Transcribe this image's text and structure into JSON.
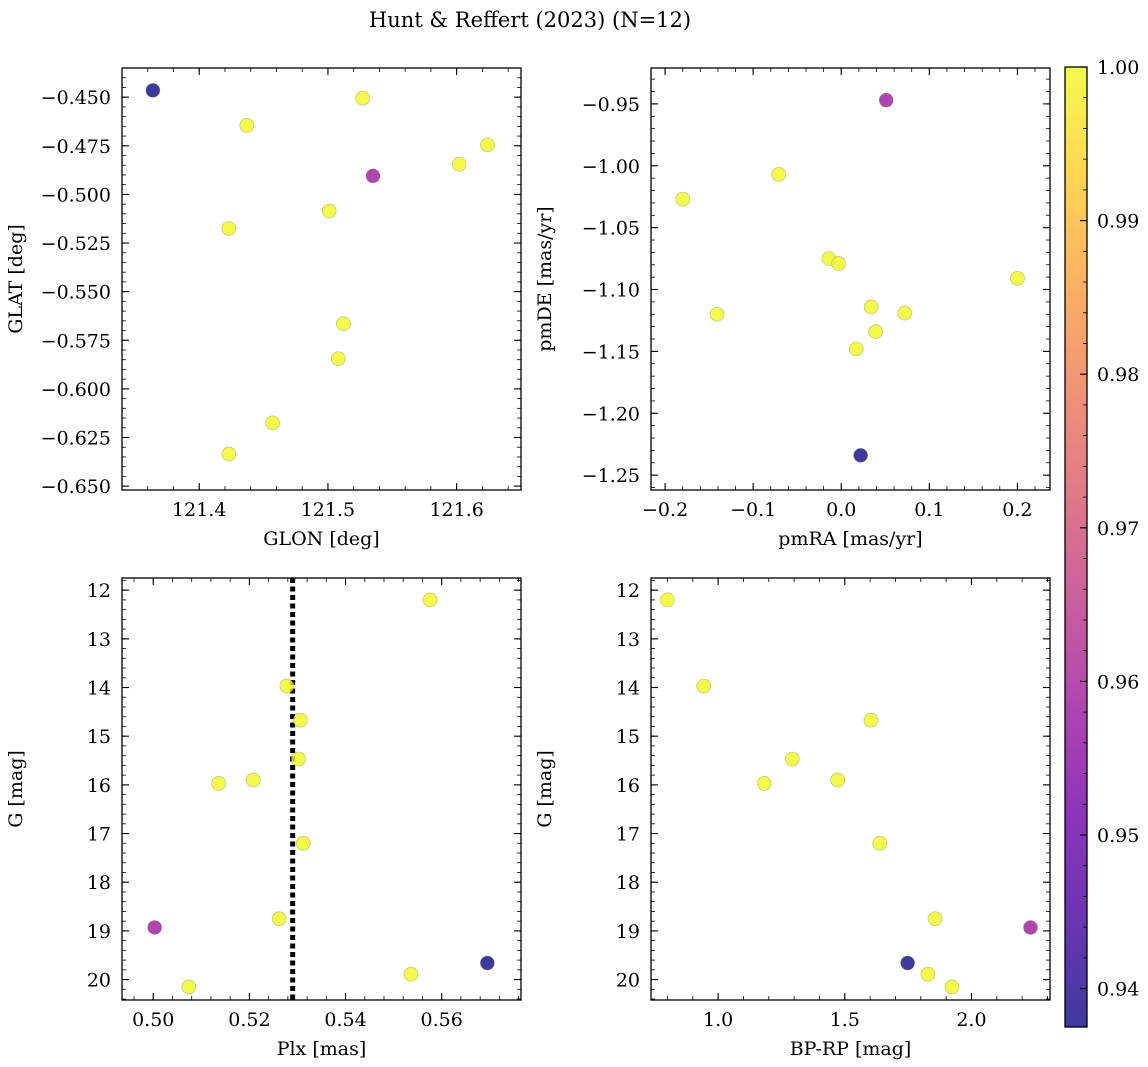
{
  "figure": {
    "title": "Hunt & Reffert (2023) (N=12)"
  },
  "colormap": {
    "name": "plasma",
    "stops": [
      "#0d0887",
      "#46039f",
      "#7201a8",
      "#9c179e",
      "#bd3786",
      "#d8576b",
      "#ed7953",
      "#fb9f3a",
      "#fdca26",
      "#f0f921"
    ],
    "alpha": 0.8,
    "vmin": 0.9375,
    "vmax": 1.0,
    "ticks": [
      0.94,
      0.95,
      0.96,
      0.97,
      0.98,
      0.99,
      1.0
    ],
    "tick_labels": [
      "0.94",
      "0.95",
      "0.96",
      "0.97",
      "0.98",
      "0.99",
      "1.00"
    ]
  },
  "chart_data": [
    {
      "type": "scatter",
      "xlabel": "GLON [deg]",
      "ylabel": "GLAT [deg]",
      "xlim": [
        121.34,
        121.65
      ],
      "ylim": [
        -0.652,
        -0.435
      ],
      "xticks": [
        121.4,
        121.5,
        121.6
      ],
      "xtick_labels": [
        "121.4",
        "121.5",
        "121.6"
      ],
      "yticks": [
        -0.45,
        -0.475,
        -0.5,
        -0.525,
        -0.55,
        -0.575,
        -0.6,
        -0.625,
        -0.65
      ],
      "ytick_labels": [
        "−0.450",
        "−0.475",
        "−0.500",
        "−0.525",
        "−0.550",
        "−0.575",
        "−0.600",
        "−0.625",
        "−0.650"
      ],
      "points": [
        {
          "x": 121.364,
          "y": -0.4465,
          "c": 0.9375
        },
        {
          "x": 121.527,
          "y": -0.4505,
          "c": 1.0
        },
        {
          "x": 121.437,
          "y": -0.4645,
          "c": 1.0
        },
        {
          "x": 121.624,
          "y": -0.4745,
          "c": 1.0
        },
        {
          "x": 121.602,
          "y": -0.4845,
          "c": 1.0
        },
        {
          "x": 121.535,
          "y": -0.4905,
          "c": 0.958
        },
        {
          "x": 121.501,
          "y": -0.5085,
          "c": 1.0
        },
        {
          "x": 121.423,
          "y": -0.5175,
          "c": 1.0
        },
        {
          "x": 121.512,
          "y": -0.5665,
          "c": 1.0
        },
        {
          "x": 121.508,
          "y": -0.5845,
          "c": 1.0
        },
        {
          "x": 121.457,
          "y": -0.6175,
          "c": 1.0
        },
        {
          "x": 121.423,
          "y": -0.6335,
          "c": 1.0
        }
      ]
    },
    {
      "type": "scatter",
      "xlabel": "pmRA [mas/yr]",
      "ylabel": "pmDE [mas/yr]",
      "xlim": [
        -0.216,
        0.237
      ],
      "ylim": [
        -1.262,
        -0.921
      ],
      "xticks": [
        -0.2,
        -0.1,
        0.0,
        0.1,
        0.2
      ],
      "xtick_labels": [
        "−0.2",
        "−0.1",
        "0.0",
        "0.1",
        "0.2"
      ],
      "yticks": [
        -0.95,
        -1.0,
        -1.05,
        -1.1,
        -1.15,
        -1.2,
        -1.25
      ],
      "ytick_labels": [
        "−0.95",
        "−1.00",
        "−1.05",
        "−1.10",
        "−1.15",
        "−1.20",
        "−1.25"
      ],
      "points": [
        {
          "x": 0.051,
          "y": -0.947,
          "c": 0.958
        },
        {
          "x": -0.071,
          "y": -1.007,
          "c": 1.0
        },
        {
          "x": -0.18,
          "y": -1.027,
          "c": 1.0
        },
        {
          "x": -0.014,
          "y": -1.075,
          "c": 1.0
        },
        {
          "x": -0.003,
          "y": -1.079,
          "c": 1.0
        },
        {
          "x": 0.2,
          "y": -1.091,
          "c": 1.0
        },
        {
          "x": 0.034,
          "y": -1.114,
          "c": 1.0
        },
        {
          "x": 0.072,
          "y": -1.119,
          "c": 1.0
        },
        {
          "x": -0.141,
          "y": -1.12,
          "c": 1.0
        },
        {
          "x": 0.039,
          "y": -1.134,
          "c": 1.0
        },
        {
          "x": 0.017,
          "y": -1.148,
          "c": 1.0
        },
        {
          "x": 0.022,
          "y": -1.234,
          "c": 0.9375
        }
      ]
    },
    {
      "type": "scatter",
      "xlabel": "Plx [mas]",
      "ylabel": "G [mag]",
      "xlim": [
        0.4935,
        0.5765
      ],
      "ylim": [
        20.42,
        11.75
      ],
      "xticks": [
        0.5,
        0.52,
        0.54,
        0.56
      ],
      "xtick_labels": [
        "0.50",
        "0.52",
        "0.54",
        "0.56"
      ],
      "yticks": [
        12,
        13,
        14,
        15,
        16,
        17,
        18,
        19,
        20
      ],
      "ytick_labels": [
        "12",
        "13",
        "14",
        "15",
        "16",
        "17",
        "18",
        "19",
        "20"
      ],
      "vline_x": 0.529,
      "points": [
        {
          "x": 0.5576,
          "y": 12.2,
          "c": 1.0
        },
        {
          "x": 0.5278,
          "y": 13.97,
          "c": 1.0
        },
        {
          "x": 0.5306,
          "y": 14.67,
          "c": 1.0
        },
        {
          "x": 0.5302,
          "y": 15.47,
          "c": 1.0
        },
        {
          "x": 0.5136,
          "y": 15.97,
          "c": 1.0
        },
        {
          "x": 0.5208,
          "y": 15.9,
          "c": 1.0
        },
        {
          "x": 0.5312,
          "y": 17.2,
          "c": 1.0
        },
        {
          "x": 0.5262,
          "y": 18.75,
          "c": 1.0
        },
        {
          "x": 0.5003,
          "y": 18.93,
          "c": 0.958
        },
        {
          "x": 0.5695,
          "y": 19.66,
          "c": 0.9375
        },
        {
          "x": 0.5536,
          "y": 19.89,
          "c": 1.0
        },
        {
          "x": 0.5074,
          "y": 20.15,
          "c": 1.0
        }
      ]
    },
    {
      "type": "scatter",
      "xlabel": "BP-RP [mag]",
      "ylabel": "G [mag]",
      "xlim": [
        0.735,
        2.31
      ],
      "ylim": [
        20.42,
        11.75
      ],
      "xticks": [
        1.0,
        1.5,
        2.0
      ],
      "xtick_labels": [
        "1.0",
        "1.5",
        "2.0"
      ],
      "yticks": [
        12,
        13,
        14,
        15,
        16,
        17,
        18,
        19,
        20
      ],
      "ytick_labels": [
        "12",
        "13",
        "14",
        "15",
        "16",
        "17",
        "18",
        "19",
        "20"
      ],
      "points": [
        {
          "x": 0.8,
          "y": 12.2,
          "c": 1.0
        },
        {
          "x": 0.943,
          "y": 13.97,
          "c": 1.0
        },
        {
          "x": 1.603,
          "y": 14.67,
          "c": 1.0
        },
        {
          "x": 1.293,
          "y": 15.47,
          "c": 1.0
        },
        {
          "x": 1.182,
          "y": 15.97,
          "c": 1.0
        },
        {
          "x": 1.472,
          "y": 15.9,
          "c": 1.0
        },
        {
          "x": 1.638,
          "y": 17.2,
          "c": 1.0
        },
        {
          "x": 1.856,
          "y": 18.75,
          "c": 1.0
        },
        {
          "x": 2.233,
          "y": 18.93,
          "c": 0.958
        },
        {
          "x": 1.748,
          "y": 19.66,
          "c": 0.9375
        },
        {
          "x": 1.828,
          "y": 19.89,
          "c": 1.0
        },
        {
          "x": 1.923,
          "y": 20.15,
          "c": 1.0
        }
      ]
    }
  ]
}
